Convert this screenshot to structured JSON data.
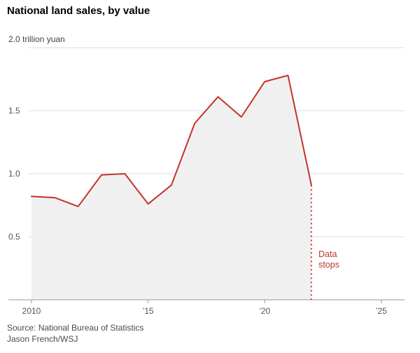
{
  "header": {
    "title": "National land sales, by value"
  },
  "footer": {
    "source": "Source: National Bureau of Statistics",
    "credit": "Jason French/WSJ"
  },
  "chart_data": {
    "type": "line",
    "title": "National land sales, by value",
    "unit_label": "2.0 trillion yuan",
    "x": [
      2010,
      2011,
      2012,
      2013,
      2014,
      2015,
      2016,
      2017,
      2018,
      2019,
      2020,
      2021,
      2022
    ],
    "series": [
      {
        "name": "National land sales (trillion yuan)",
        "values": [
          0.82,
          0.81,
          0.74,
          0.99,
          1.0,
          0.76,
          0.91,
          1.4,
          1.61,
          1.45,
          1.73,
          1.78,
          0.91
        ]
      }
    ],
    "xlim": [
      2010,
      2026
    ],
    "ylim": [
      0,
      2.0
    ],
    "grid": true,
    "legend": "none",
    "yticks": [
      {
        "v": 0.5,
        "label": "0.5"
      },
      {
        "v": 1.0,
        "label": "1.0"
      },
      {
        "v": 1.5,
        "label": "1.5"
      },
      {
        "v": 2.0,
        "label": ""
      }
    ],
    "xticks": [
      {
        "v": 2010,
        "label": "2010"
      },
      {
        "v": 2015,
        "label": "’15"
      },
      {
        "v": 2020,
        "label": "’20"
      },
      {
        "v": 2025,
        "label": "’25"
      }
    ],
    "annotation": {
      "lines": [
        "Data",
        "stops"
      ],
      "x": 2022,
      "style": "dotted-vertical-line"
    },
    "colors": {
      "line": "#c2342c",
      "area": "#f0f0f0",
      "grid": "#dcdcdc",
      "axis": "#9a9a9a",
      "tick_text": "#555555",
      "annotation": "#c2342c"
    }
  }
}
